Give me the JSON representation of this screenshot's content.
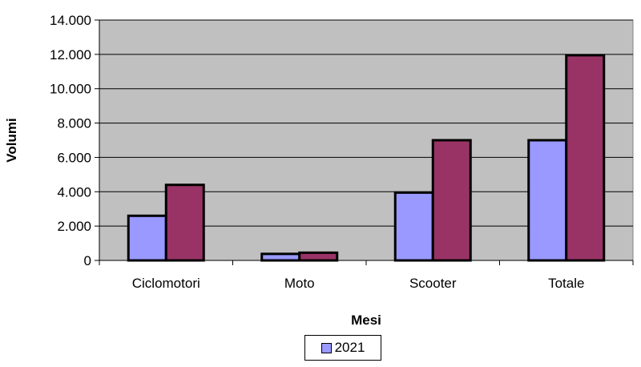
{
  "chart_data": {
    "type": "bar",
    "categories": [
      "Ciclomotori",
      "Moto",
      "Scooter",
      "Totale"
    ],
    "series": [
      {
        "name": "2021",
        "values": [
          2600,
          380,
          3950,
          7000
        ],
        "color": "#9999ff"
      },
      {
        "values": [
          4400,
          450,
          7000,
          11950
        ],
        "color": "#993366"
      }
    ],
    "xlabel": "Mesi",
    "ylabel": "Volumi",
    "ylim": [
      0,
      14000
    ],
    "yticks": [
      0,
      2000,
      4000,
      6000,
      8000,
      10000,
      12000,
      14000
    ],
    "ytick_labels": [
      "0",
      "2.000",
      "4.000",
      "6.000",
      "8.000",
      "10.000",
      "12.000",
      "14.000"
    ],
    "grid": true,
    "plot_background": "#c0c0c0",
    "legend_position": "bottom-center"
  }
}
